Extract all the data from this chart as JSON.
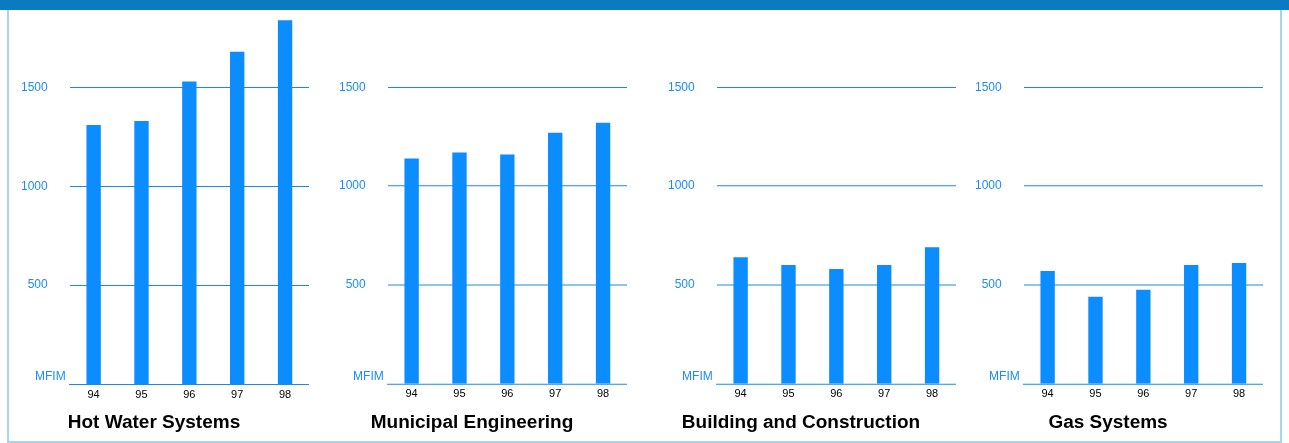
{
  "chart_data": [
    {
      "type": "bar",
      "title": "Hot Water Systems",
      "ylabel": "MFIM",
      "categories": [
        "94",
        "95",
        "96",
        "97",
        "98"
      ],
      "values": [
        1310,
        1330,
        1530,
        1680,
        1840
      ],
      "color": "#0b8cff",
      "ylim": [
        0,
        1850
      ],
      "yticks": [
        500,
        1000,
        1500
      ],
      "grid": "y",
      "legend": false
    },
    {
      "type": "bar",
      "title": "Municipal Engineering",
      "ylabel": "MFIM",
      "categories": [
        "94",
        "95",
        "96",
        "97",
        "98"
      ],
      "values": [
        1140,
        1170,
        1160,
        1270,
        1320
      ],
      "color": "#0b8cff",
      "ylim": [
        0,
        1500
      ],
      "yticks": [
        500,
        1000,
        1500
      ],
      "grid": "y",
      "legend": false
    },
    {
      "type": "bar",
      "title": "Building and Construction",
      "ylabel": "MFIM",
      "categories": [
        "94",
        "95",
        "96",
        "97",
        "98"
      ],
      "values": [
        640,
        600,
        580,
        600,
        690
      ],
      "color": "#0b8cff",
      "ylim": [
        0,
        1500
      ],
      "yticks": [
        500,
        1000,
        1500
      ],
      "grid": "y",
      "legend": false
    },
    {
      "type": "bar",
      "title": "Gas Systems",
      "ylabel": "MFIM",
      "categories": [
        "94",
        "95",
        "96",
        "97",
        "98"
      ],
      "values": [
        570,
        440,
        475,
        600,
        610
      ],
      "color": "#0b8cff",
      "ylim": [
        0,
        1500
      ],
      "yticks": [
        500,
        1000,
        1500
      ],
      "grid": "y",
      "legend": false
    }
  ]
}
